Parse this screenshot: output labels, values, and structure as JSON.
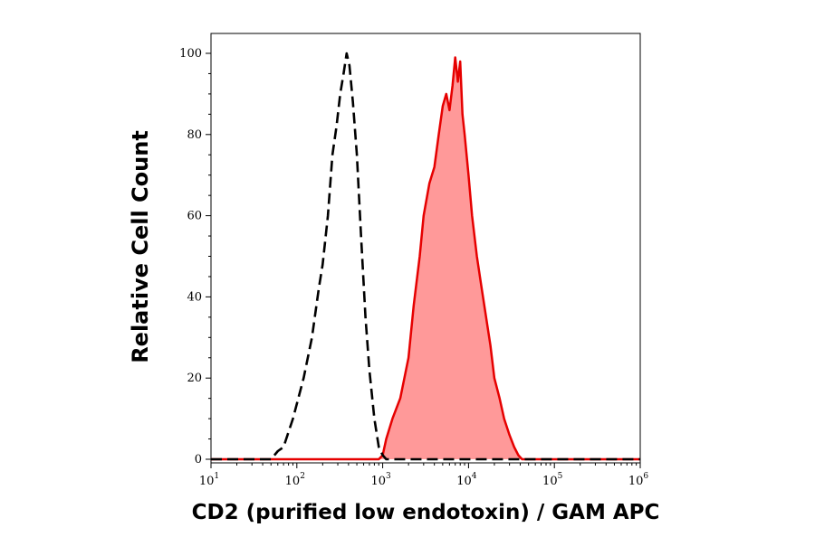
{
  "chart_data": {
    "type": "area",
    "xlabel": "CD2 (purified low endotoxin) / GAM APC",
    "ylabel": "Relative Cell Count",
    "x_scale": "log",
    "xlim": [
      10,
      1000000
    ],
    "ylim": [
      0,
      100
    ],
    "x_ticks": [
      {
        "base": "10",
        "exp": "1",
        "value": 10
      },
      {
        "base": "10",
        "exp": "2",
        "value": 100
      },
      {
        "base": "10",
        "exp": "3",
        "value": 1000
      },
      {
        "base": "10",
        "exp": "4",
        "value": 10000
      },
      {
        "base": "10",
        "exp": "5",
        "value": 100000
      },
      {
        "base": "10",
        "exp": "6",
        "value": 1000000
      }
    ],
    "y_ticks": [
      "0",
      "20",
      "40",
      "60",
      "80",
      "100"
    ],
    "grid": false,
    "series": [
      {
        "style": "dashed",
        "color": "#000000",
        "x": [
          10,
          50,
          60,
          70,
          90,
          120,
          150,
          180,
          200,
          230,
          260,
          290,
          320,
          350,
          380,
          410,
          450,
          500,
          560,
          630,
          700,
          800,
          900,
          1000,
          1100,
          1200,
          10000,
          1000000
        ],
        "y": [
          0,
          0,
          2,
          3,
          10,
          20,
          30,
          42,
          48,
          60,
          75,
          82,
          90,
          95,
          100,
          97,
          88,
          75,
          55,
          35,
          22,
          10,
          3,
          1,
          0,
          0,
          0,
          0
        ]
      },
      {
        "style": "filled",
        "color": "#e60000",
        "fill": "#ff9999",
        "x": [
          10,
          900,
          1000,
          1100,
          1300,
          1600,
          2000,
          2300,
          2700,
          3000,
          3500,
          4000,
          4500,
          5000,
          5500,
          6000,
          6500,
          7000,
          7500,
          8000,
          8500,
          9000,
          10000,
          11000,
          12500,
          14000,
          16000,
          18000,
          20000,
          23000,
          26000,
          30000,
          34000,
          38000,
          42000,
          50000,
          1000000
        ],
        "y": [
          0,
          0,
          1,
          5,
          10,
          15,
          25,
          38,
          50,
          60,
          68,
          72,
          80,
          87,
          90,
          86,
          92,
          99,
          93,
          98,
          85,
          80,
          70,
          60,
          50,
          43,
          35,
          28,
          20,
          15,
          10,
          6,
          3,
          1,
          0,
          0,
          0
        ]
      }
    ]
  }
}
